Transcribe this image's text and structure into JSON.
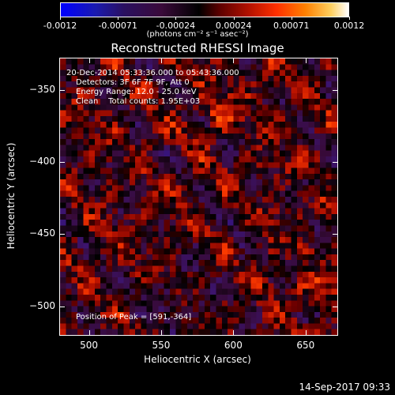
{
  "chart_data": {
    "type": "heatmap",
    "title": "Reconstructed RHESSI Image",
    "xlabel": "Heliocentric X (arcsec)",
    "ylabel": "Heliocentric Y (arcsec)",
    "xlim": [
      480,
      672
    ],
    "ylim": [
      -520,
      -328
    ],
    "xticks": [
      500,
      550,
      600,
      650
    ],
    "yticks": [
      -350,
      -400,
      -450,
      -500
    ],
    "colorbar": {
      "ticks": [
        "-0.0012",
        "-0.00071",
        "-0.00024",
        "0.00024",
        "0.00071",
        "0.0012"
      ],
      "unit": "(photons cm⁻² s⁻¹ asec⁻²)",
      "range": [
        -0.0012,
        0.0012
      ]
    },
    "annotations": {
      "time_range": "20-Dec-2014 05:33:36.000 to 05:43:36.000",
      "detectors": "Detectors: 3F 6F 7F 9F, Att 0",
      "energy": "Energy Range: 12.0 - 25.0 keV",
      "method": "Clean    Total counts: 1.95E+03",
      "peak": "Position of Peak = [591,-364]"
    },
    "peak_position": [
      591,
      -364
    ]
  },
  "footer": {
    "timestamp": "14-Sep-2017 09:33"
  }
}
